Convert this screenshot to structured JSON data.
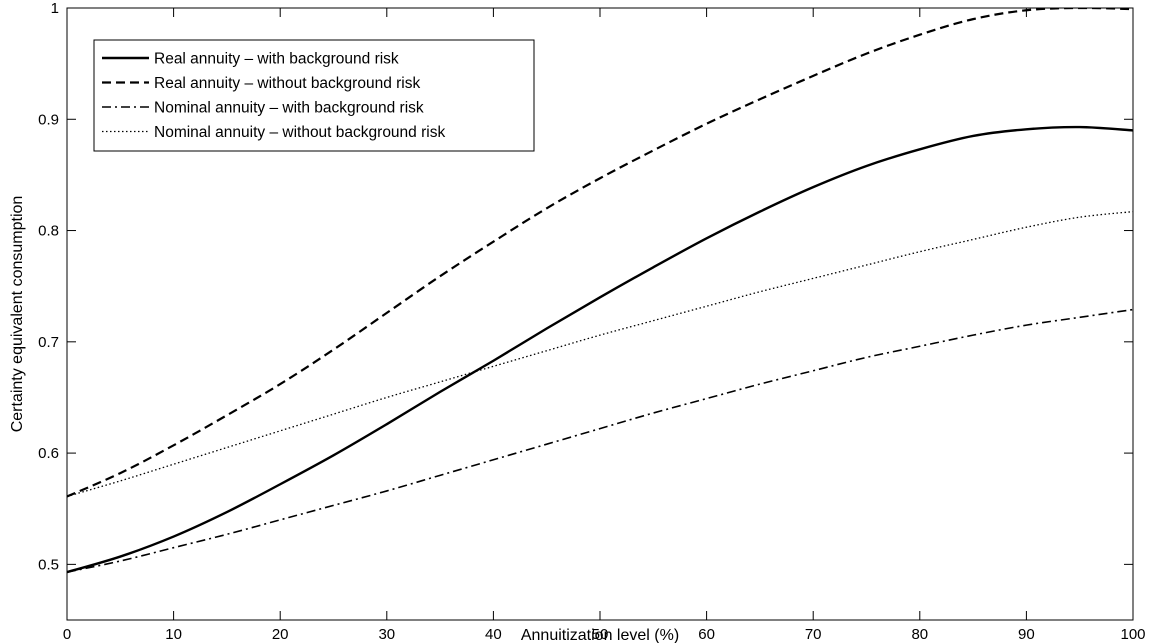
{
  "chart_data": {
    "type": "line",
    "title": "",
    "xlabel": "Annuitization level (%)",
    "ylabel": "Certainty equivalent consumption",
    "xlim": [
      0,
      100
    ],
    "ylim": [
      0.45,
      1.0
    ],
    "xticks": [
      0,
      10,
      20,
      30,
      40,
      50,
      60,
      70,
      80,
      90,
      100
    ],
    "yticks": [
      0.5,
      0.6,
      0.7,
      0.8,
      0.9,
      1.0
    ],
    "xtick_labels": [
      "0",
      "10",
      "20",
      "30",
      "40",
      "50",
      "60",
      "70",
      "80",
      "90",
      "100"
    ],
    "ytick_labels": [
      "0.5",
      "0.6",
      "0.7",
      "0.8",
      "0.9",
      "1"
    ],
    "grid": false,
    "legend_position": "top-left",
    "x": [
      0,
      5,
      10,
      15,
      20,
      25,
      30,
      35,
      40,
      45,
      50,
      55,
      60,
      65,
      70,
      75,
      80,
      85,
      90,
      95,
      100
    ],
    "series": [
      {
        "name": "Real annuity – with background risk",
        "style": "solid",
        "color": "#000000",
        "values": [
          0.493,
          0.507,
          0.525,
          0.547,
          0.572,
          0.598,
          0.626,
          0.655,
          0.683,
          0.712,
          0.74,
          0.767,
          0.793,
          0.817,
          0.839,
          0.858,
          0.873,
          0.885,
          0.891,
          0.893,
          0.89
        ]
      },
      {
        "name": "Real annuity – without background risk",
        "style": "dashed",
        "color": "#000000",
        "values": [
          0.561,
          0.582,
          0.607,
          0.634,
          0.662,
          0.693,
          0.726,
          0.759,
          0.79,
          0.82,
          0.847,
          0.872,
          0.896,
          0.918,
          0.939,
          0.959,
          0.976,
          0.99,
          0.998,
          1.0,
          0.999
        ]
      },
      {
        "name": "Nominal annuity – with background risk",
        "style": "dashdot",
        "color": "#000000",
        "values": [
          0.493,
          0.503,
          0.515,
          0.527,
          0.54,
          0.553,
          0.566,
          0.58,
          0.594,
          0.608,
          0.622,
          0.636,
          0.649,
          0.662,
          0.674,
          0.686,
          0.696,
          0.706,
          0.715,
          0.722,
          0.729
        ]
      },
      {
        "name": "Nominal annuity – without background risk",
        "style": "dotted",
        "color": "#000000",
        "values": [
          0.561,
          0.575,
          0.59,
          0.605,
          0.62,
          0.635,
          0.65,
          0.664,
          0.678,
          0.692,
          0.706,
          0.719,
          0.732,
          0.745,
          0.757,
          0.769,
          0.781,
          0.792,
          0.803,
          0.812,
          0.817
        ]
      }
    ]
  }
}
